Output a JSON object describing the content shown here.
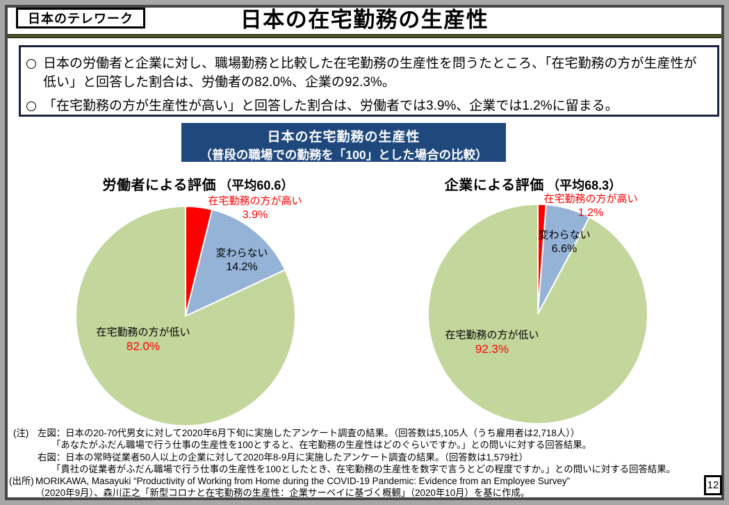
{
  "header": {
    "tag": "日本のテレワーク",
    "title": "日本の在宅勤務の生産性"
  },
  "summary_bullets": [
    {
      "marker": "○",
      "text": "日本の労働者と企業に対し、職場勤務と比較した在宅勤務の生産性を問うたところ、「在宅勤務の方が生産性が\n低い」と回答した割合は、労働者の82.0%、企業の92.3%。"
    },
    {
      "marker": "○",
      "text": "「在宅勤務の方が生産性が高い」と回答した割合は、労働者では3.9%、企業では1.2%に留まる。"
    }
  ],
  "chart_heading": {
    "title": "日本の在宅勤務の生産性",
    "subtitle": "（普段の職場での勤務を「100」とした場合の比較）"
  },
  "chart_data": [
    {
      "type": "pie",
      "title": "労働者による評価",
      "title_note": "（平均60.6）",
      "start_angle_deg": 0,
      "direction": "clockwise",
      "slices": [
        {
          "label": "在宅勤務の方が高い",
          "value": 3.9,
          "pct_text": "3.9%",
          "color": "#ff0000"
        },
        {
          "label": "変わらない",
          "value": 14.2,
          "pct_text": "14.2%",
          "color": "#95b3d7"
        },
        {
          "label": "在宅勤務の方が低い",
          "value": 82.0,
          "pct_text": "82.0%",
          "color": "#c3d69b"
        }
      ]
    },
    {
      "type": "pie",
      "title": "企業による評価",
      "title_note": "（平均68.3）",
      "start_angle_deg": 0,
      "direction": "clockwise",
      "slices": [
        {
          "label": "在宅勤務の方が高い",
          "value": 1.2,
          "pct_text": "1.2%",
          "color": "#ff0000"
        },
        {
          "label": "変わらない",
          "value": 6.6,
          "pct_text": "6.6%",
          "color": "#95b3d7"
        },
        {
          "label": "在宅勤務の方が低い",
          "value": 92.3,
          "pct_text": "92.3%",
          "color": "#c3d69b"
        }
      ]
    }
  ],
  "notes": {
    "label": "(注)",
    "lines": [
      "左図：日本の20-70代男女に対して2020年6月下旬に実施したアンケート調査の結果。（回答数は5,105人（うち雇用者は2,718人））",
      "「あなたがふだん職場で行う仕事の生産性を100とすると、在宅勤務の生産性はどのぐらいですか。」との問いに対する回答結果。",
      "右図：日本の常時従業者50人以上の企業に対して2020年8-9月に実施したアンケート調査の結果。（回答数は1,579社）",
      "「貴社の従業者がふだん職場で行う仕事の生産性を100としたとき、在宅勤務の生産性を数字で言うとどの程度ですか。」との問いに対する回答結果。"
    ],
    "source_label": "(出所)",
    "source_lines": [
      "MORIKAWA, Masayuki “Productivity of Working from Home during the COVID-19 Pandemic: Evidence from an Employee Survey”",
      "（2020年9月）、森川正之「新型コロナと在宅勤務の生産性：企業サーベイに基づく概観」（2020年10月）を基に作成。"
    ]
  },
  "page_number": "12",
  "colors": {
    "frame": "#a6a6a6",
    "inner_border": "#474747",
    "olive_rule": "#4a5322",
    "bullet_box_border": "#1a2440",
    "heading_bg": "#1f497d",
    "pie_green": "#c3d69b",
    "pie_blue": "#95b3d7",
    "pie_red": "#ff0000"
  }
}
